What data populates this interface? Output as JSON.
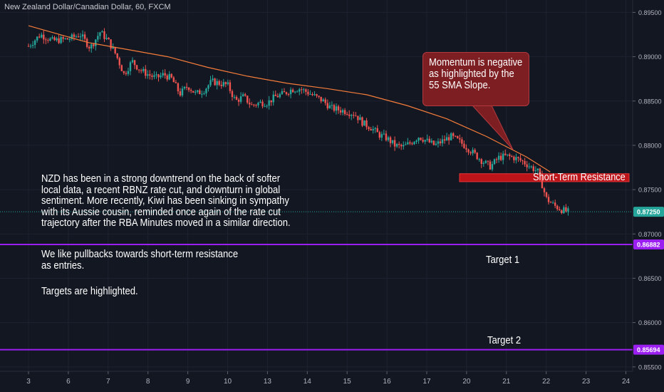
{
  "header": {
    "title": "New Zealand Dollar/Canadian Dollar, 60, FXCM"
  },
  "analysis": {
    "paragraph1": [
      "NZD has been in a strong downtrend on the back of softer",
      "local data, a recent RBNZ rate cut, and downturn in global",
      "sentiment. More recently, Kiwi has been sinking in sympathy",
      "with its Aussie cousin, reminded once again of the rate cut",
      "trajectory after the RBA Minutes moved in a similar direction."
    ],
    "paragraph2": [
      "We like pullbacks towards short-term resistance",
      "as entries."
    ],
    "paragraph3": "Targets are highlighted."
  },
  "callout": {
    "lines": [
      "Momentum is negative",
      "as highlighted by the",
      "55 SMA Slope."
    ]
  },
  "zone": {
    "label": "Short-Term Resistance",
    "from": 0.8759,
    "to": 0.8768,
    "color": "#d0141a"
  },
  "targets": [
    {
      "label": "Target 1",
      "price": "0.86882",
      "value": 0.86882,
      "color": "#9c1ff2"
    },
    {
      "label": "Target 2",
      "price": "0.85694",
      "value": 0.85694,
      "color": "#9c1ff2"
    }
  ],
  "chart_data": {
    "type": "candlestick",
    "symbol": "NZDCAD",
    "timeframe": "60",
    "y_axis": {
      "ticks": [
        "0.89500",
        "0.89000",
        "0.88500",
        "0.88000",
        "0.87500",
        "0.87000",
        "0.86500",
        "0.86000",
        "0.85500"
      ],
      "tick_values": [
        0.895,
        0.89,
        0.885,
        0.88,
        0.875,
        0.87,
        0.865,
        0.86,
        0.855
      ],
      "range": [
        0.8545,
        0.8964
      ]
    },
    "x_axis": {
      "ticks": [
        "3",
        "6",
        "7",
        "8",
        "9",
        "10",
        "13",
        "14",
        "15",
        "16",
        "17",
        "20",
        "21",
        "22",
        "23",
        "24"
      ]
    },
    "last_price": {
      "label": "0.87250",
      "value": 0.8725,
      "color": "#26a69a"
    },
    "colors": {
      "up": "#26a69a",
      "down": "#ef5350",
      "sma": "#f57c3a"
    },
    "sma_period": 55,
    "sma": [
      [
        0,
        0.8935
      ],
      [
        1.5,
        0.8916
      ],
      [
        2.5,
        0.8908
      ],
      [
        3.5,
        0.89
      ],
      [
        4.5,
        0.8888
      ],
      [
        5.5,
        0.8878
      ],
      [
        6.5,
        0.887
      ],
      [
        7.5,
        0.8864
      ],
      [
        8.5,
        0.8857
      ],
      [
        9.5,
        0.8845
      ],
      [
        10.5,
        0.883
      ],
      [
        11.5,
        0.881
      ],
      [
        12.5,
        0.8787
      ],
      [
        13.1,
        0.877
      ]
    ],
    "price_path": [
      [
        0,
        0.8912
      ],
      [
        0.3,
        0.8925
      ],
      [
        0.6,
        0.8918
      ],
      [
        1,
        0.892
      ],
      [
        1.3,
        0.8925
      ],
      [
        1.55,
        0.891
      ],
      [
        1.8,
        0.8928
      ],
      [
        2.0,
        0.8918
      ],
      [
        2.2,
        0.8902
      ],
      [
        2.4,
        0.888
      ],
      [
        2.6,
        0.8895
      ],
      [
        2.8,
        0.8885
      ],
      [
        3.0,
        0.888
      ],
      [
        3.2,
        0.8876
      ],
      [
        3.4,
        0.888
      ],
      [
        3.6,
        0.8875
      ],
      [
        3.8,
        0.8858
      ],
      [
        4.0,
        0.8867
      ],
      [
        4.2,
        0.8858
      ],
      [
        4.4,
        0.8862
      ],
      [
        4.6,
        0.8872
      ],
      [
        4.8,
        0.887
      ],
      [
        5.0,
        0.8868
      ],
      [
        5.2,
        0.885
      ],
      [
        5.4,
        0.8855
      ],
      [
        5.6,
        0.8845
      ],
      [
        5.8,
        0.8848
      ],
      [
        6.0,
        0.8848
      ],
      [
        6.2,
        0.8855
      ],
      [
        6.4,
        0.8858
      ],
      [
        6.6,
        0.8863
      ],
      [
        6.8,
        0.8864
      ],
      [
        7.0,
        0.886
      ],
      [
        7.2,
        0.8855
      ],
      [
        7.4,
        0.885
      ],
      [
        7.6,
        0.8842
      ],
      [
        7.8,
        0.884
      ],
      [
        8.0,
        0.8838
      ],
      [
        8.2,
        0.8835
      ],
      [
        8.4,
        0.8825
      ],
      [
        8.6,
        0.882
      ],
      [
        8.8,
        0.8812
      ],
      [
        9.0,
        0.8808
      ],
      [
        9.2,
        0.88
      ],
      [
        9.4,
        0.8798
      ],
      [
        9.6,
        0.8803
      ],
      [
        9.8,
        0.881
      ],
      [
        10.0,
        0.8805
      ],
      [
        10.2,
        0.88
      ],
      [
        10.4,
        0.8805
      ],
      [
        10.6,
        0.881
      ],
      [
        10.8,
        0.8805
      ],
      [
        11.0,
        0.8798
      ],
      [
        11.2,
        0.879
      ],
      [
        11.4,
        0.8782
      ],
      [
        11.6,
        0.8776
      ],
      [
        11.8,
        0.8786
      ],
      [
        12.0,
        0.8788
      ],
      [
        12.2,
        0.8786
      ],
      [
        12.4,
        0.8782
      ],
      [
        12.6,
        0.8776
      ],
      [
        12.8,
        0.877
      ],
      [
        12.9,
        0.8755
      ],
      [
        13.0,
        0.874
      ],
      [
        13.2,
        0.8732
      ],
      [
        13.4,
        0.8727
      ],
      [
        13.55,
        0.8725
      ]
    ]
  }
}
